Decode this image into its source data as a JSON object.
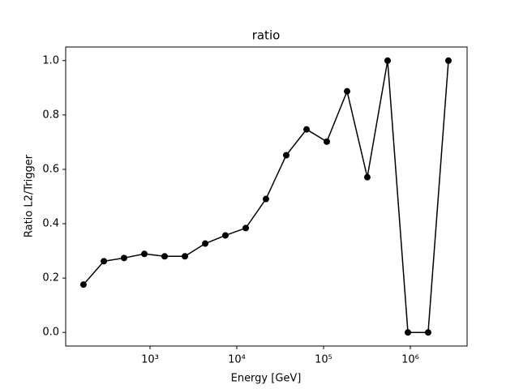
{
  "chart_data": {
    "type": "line",
    "title": "ratio",
    "xlabel": "Energy [GeV]",
    "ylabel": "Ratio L2/Trigger",
    "xscale": "log",
    "grid": false,
    "marker": "circle",
    "x": [
      171,
      294,
      502,
      861,
      1473,
      2523,
      4325,
      7396,
      12680,
      21680,
      37150,
      63680,
      108900,
      186600,
      319200,
      547000,
      937600,
      1603000,
      2748000
    ],
    "series": [
      {
        "color": "#000000",
        "values": [
          0.176,
          0.262,
          0.274,
          0.289,
          0.28,
          0.28,
          0.327,
          0.357,
          0.384,
          0.491,
          0.652,
          0.747,
          0.702,
          0.887,
          0.571,
          1.0,
          0.0,
          0.0,
          1.0
        ]
      }
    ],
    "xlim": [
      106.7,
      4508000
    ],
    "ylim": [
      -0.05,
      1.05
    ],
    "xticks": [
      {
        "value": 1000,
        "label": "10³"
      },
      {
        "value": 10000,
        "label": "10⁴"
      },
      {
        "value": 100000,
        "label": "10⁵"
      },
      {
        "value": 1000000,
        "label": "10⁶"
      }
    ],
    "yticks": [
      {
        "value": 0,
        "label": "0.0"
      },
      {
        "value": 0.2,
        "label": "0.2"
      },
      {
        "value": 0.4,
        "label": "0.4"
      },
      {
        "value": 0.6,
        "label": "0.6"
      },
      {
        "value": 0.8,
        "label": "0.8"
      },
      {
        "value": 1.0,
        "label": "1.0"
      }
    ]
  }
}
